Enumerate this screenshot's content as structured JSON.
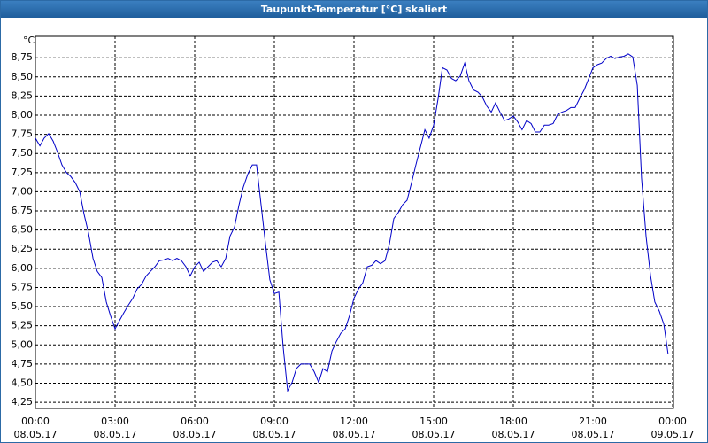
{
  "chart_data": {
    "type": "line",
    "title": "Taupunkt-Temperatur [°C] skaliert",
    "y_unit": "°C",
    "xlim": [
      0,
      24
    ],
    "xticks": [
      {
        "value": 0,
        "label": "00:00"
      },
      {
        "value": 3,
        "label": "03:00"
      },
      {
        "value": 6,
        "label": "06:00"
      },
      {
        "value": 9,
        "label": "09:00"
      },
      {
        "value": 12,
        "label": "12:00"
      },
      {
        "value": 15,
        "label": "15:00"
      },
      {
        "value": 18,
        "label": "18:00"
      },
      {
        "value": 21,
        "label": "21:00"
      },
      {
        "value": 24,
        "label": "00:00"
      }
    ],
    "xtick_dates": [
      "08.05.17",
      "08.05.17",
      "08.05.17",
      "08.05.17",
      "08.05.17",
      "08.05.17",
      "08.05.17",
      "08.05.17",
      "09.05.17"
    ],
    "ylim": [
      4.17,
      9.03
    ],
    "yticks": [
      {
        "value": 4.25,
        "label": "4,25"
      },
      {
        "value": 4.5,
        "label": "4,50"
      },
      {
        "value": 4.75,
        "label": "4,75"
      },
      {
        "value": 5,
        "label": "5,00"
      },
      {
        "value": 5.25,
        "label": "5,25"
      },
      {
        "value": 5.5,
        "label": "5,50"
      },
      {
        "value": 5.75,
        "label": "5,75"
      },
      {
        "value": 6,
        "label": "6,00"
      },
      {
        "value": 6.25,
        "label": "6,25"
      },
      {
        "value": 6.5,
        "label": "6,50"
      },
      {
        "value": 6.75,
        "label": "6,75"
      },
      {
        "value": 7,
        "label": "7,00"
      },
      {
        "value": 7.25,
        "label": "7,25"
      },
      {
        "value": 7.5,
        "label": "7,50"
      },
      {
        "value": 7.75,
        "label": "7,75"
      },
      {
        "value": 8,
        "label": "8,00"
      },
      {
        "value": 8.25,
        "label": "8,25"
      },
      {
        "value": 8.5,
        "label": "8,50"
      },
      {
        "value": 8.75,
        "label": "8,75"
      }
    ],
    "grid": true,
    "color": "#0000c8",
    "x": [
      0,
      0.17,
      0.33,
      0.5,
      0.67,
      0.83,
      1,
      1.17,
      1.33,
      1.5,
      1.67,
      1.83,
      2,
      2.17,
      2.33,
      2.5,
      2.67,
      2.83,
      3,
      3.17,
      3.33,
      3.5,
      3.67,
      3.83,
      4,
      4.17,
      4.33,
      4.5,
      4.67,
      4.83,
      5,
      5.17,
      5.33,
      5.5,
      5.67,
      5.83,
      6,
      6.17,
      6.33,
      6.5,
      6.67,
      6.83,
      7,
      7.17,
      7.33,
      7.5,
      7.67,
      7.83,
      8,
      8.17,
      8.33,
      8.5,
      8.67,
      8.83,
      9,
      9.17,
      9.33,
      9.5,
      9.67,
      9.83,
      10,
      10.17,
      10.33,
      10.5,
      10.67,
      10.83,
      11,
      11.17,
      11.33,
      11.5,
      11.67,
      11.83,
      12,
      12.17,
      12.33,
      12.5,
      12.67,
      12.83,
      13,
      13.17,
      13.33,
      13.5,
      13.67,
      13.83,
      14,
      14.17,
      14.33,
      14.5,
      14.67,
      14.83,
      15,
      15.17,
      15.33,
      15.5,
      15.67,
      15.83,
      16,
      16.17,
      16.33,
      16.5,
      16.67,
      16.83,
      17,
      17.17,
      17.33,
      17.5,
      17.67,
      17.83,
      18,
      18.17,
      18.33,
      18.5,
      18.67,
      18.83,
      19,
      19.17,
      19.33,
      19.5,
      19.67,
      19.83,
      20,
      20.17,
      20.33,
      20.5,
      20.67,
      20.83,
      21,
      21.17,
      21.33,
      21.5,
      21.67,
      21.83,
      22,
      22.17,
      22.33,
      22.5,
      22.67,
      22.83,
      23,
      23.17,
      23.33,
      23.5,
      23.67,
      23.83
    ],
    "values": [
      7.7,
      7.6,
      7.7,
      7.76,
      7.66,
      7.52,
      7.35,
      7.25,
      7.2,
      7.12,
      7.0,
      6.71,
      6.46,
      6.13,
      5.96,
      5.88,
      5.56,
      5.38,
      5.21,
      5.32,
      5.42,
      5.52,
      5.61,
      5.73,
      5.79,
      5.9,
      5.96,
      6.02,
      6.1,
      6.11,
      6.13,
      6.1,
      6.13,
      6.1,
      6.02,
      5.9,
      6.02,
      6.08,
      5.96,
      6.02,
      6.08,
      6.1,
      6.02,
      6.13,
      6.42,
      6.54,
      6.83,
      7.06,
      7.23,
      7.35,
      7.35,
      6.83,
      6.31,
      5.85,
      5.67,
      5.69,
      4.98,
      4.4,
      4.51,
      4.69,
      4.75,
      4.75,
      4.75,
      4.65,
      4.51,
      4.69,
      4.65,
      4.92,
      5.04,
      5.15,
      5.21,
      5.38,
      5.61,
      5.73,
      5.81,
      6.02,
      6.04,
      6.1,
      6.06,
      6.1,
      6.31,
      6.65,
      6.73,
      6.83,
      6.89,
      7.12,
      7.35,
      7.58,
      7.81,
      7.7,
      7.87,
      8.22,
      8.62,
      8.59,
      8.48,
      8.45,
      8.51,
      8.68,
      8.45,
      8.33,
      8.3,
      8.24,
      8.12,
      8.04,
      8.16,
      8.04,
      7.93,
      7.95,
      7.99,
      7.91,
      7.81,
      7.93,
      7.89,
      7.78,
      7.78,
      7.87,
      7.87,
      7.89,
      8.01,
      8.04,
      8.06,
      8.1,
      8.1,
      8.22,
      8.33,
      8.47,
      8.62,
      8.66,
      8.68,
      8.74,
      8.77,
      8.74,
      8.76,
      8.77,
      8.8,
      8.76,
      8.39,
      7.18,
      6.42,
      5.9,
      5.56,
      5.44,
      5.27,
      4.88
    ]
  }
}
